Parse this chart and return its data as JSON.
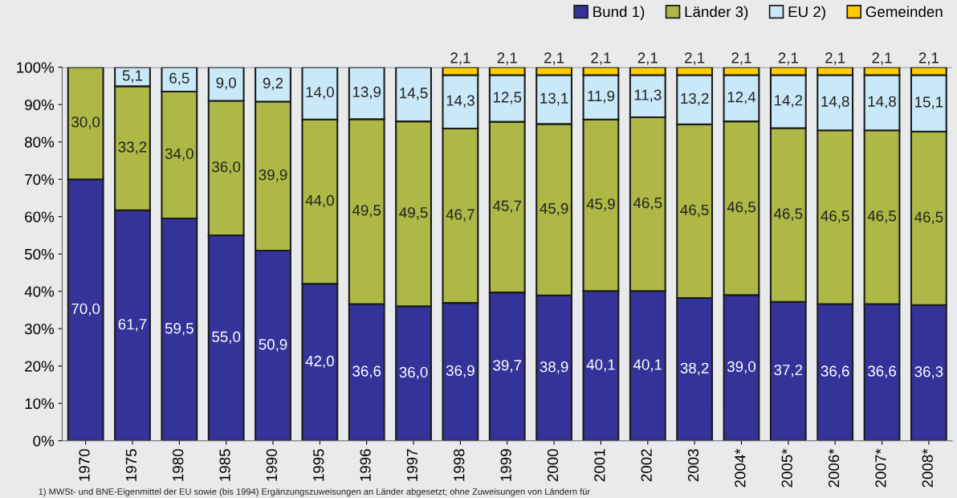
{
  "chart_data": {
    "type": "bar",
    "stacked": true,
    "categories": [
      "1970",
      "1975",
      "1980",
      "1985",
      "1990",
      "1995",
      "1996",
      "1997",
      "1998",
      "1999",
      "2000",
      "2001",
      "2002",
      "2003",
      "2004*",
      "2005*",
      "2006*",
      "2007*",
      "2008*"
    ],
    "series": [
      {
        "name": "Bund 1)",
        "color": "#333399",
        "values": [
          70.0,
          61.7,
          59.5,
          55.0,
          50.9,
          42.0,
          36.6,
          36.0,
          36.9,
          39.7,
          38.9,
          40.1,
          40.1,
          38.2,
          39.0,
          37.2,
          36.6,
          36.6,
          36.3
        ],
        "value_labels": [
          "70,0",
          "61,7",
          "59,5",
          "55,0",
          "50,9",
          "42,0",
          "36,6",
          "36,0",
          "36,9",
          "39,7",
          "38,9",
          "40,1",
          "40,1",
          "38,2",
          "39,0",
          "37,2",
          "36,6",
          "36,6",
          "36,3"
        ]
      },
      {
        "name": "Länder 3)",
        "color": "#adb847",
        "values": [
          30.0,
          33.2,
          34.0,
          36.0,
          39.9,
          44.0,
          49.5,
          49.5,
          46.7,
          45.7,
          45.9,
          45.9,
          46.5,
          46.5,
          46.5,
          46.5,
          46.5,
          46.5,
          46.5
        ],
        "value_labels": [
          "30,0",
          "33,2",
          "34,0",
          "36,0",
          "39,9",
          "44,0",
          "49,5",
          "49,5",
          "46,7",
          "45,7",
          "45,9",
          "45,9",
          "46,5",
          "46,5",
          "46,5",
          "46,5",
          "46,5",
          "46,5",
          "46,5"
        ]
      },
      {
        "name": "EU 2)",
        "color": "#c9e9f8",
        "values": [
          null,
          5.1,
          6.5,
          9.0,
          9.2,
          14.0,
          13.9,
          14.5,
          14.3,
          12.5,
          13.1,
          11.9,
          11.3,
          13.2,
          12.4,
          14.2,
          14.8,
          14.8,
          15.1
        ],
        "value_labels": [
          null,
          "5,1",
          "6,5",
          "9,0",
          "9,2",
          "14,0",
          "13,9",
          "14,5",
          "14,3",
          "12,5",
          "13,1",
          "11,9",
          "11,3",
          "13,2",
          "12,4",
          "14,2",
          "14,8",
          "14,8",
          "15,1"
        ]
      },
      {
        "name": "Gemeinden",
        "color": "#ffcc00",
        "values": [
          null,
          null,
          null,
          null,
          null,
          null,
          null,
          null,
          2.1,
          2.1,
          2.1,
          2.1,
          2.1,
          2.1,
          2.1,
          2.1,
          2.1,
          2.1,
          2.1
        ],
        "value_labels": [
          null,
          null,
          null,
          null,
          null,
          null,
          null,
          null,
          "2,1",
          "2,1",
          "2,1",
          "2,1",
          "2,1",
          "2,1",
          "2,1",
          "2,1",
          "2,1",
          "2,1",
          "2,1"
        ]
      }
    ],
    "ylim": [
      0,
      100
    ],
    "yticks": [
      {
        "value": 0,
        "label": "0%"
      },
      {
        "value": 10,
        "label": "10%"
      },
      {
        "value": 20,
        "label": "20%"
      },
      {
        "value": 30,
        "label": "30%"
      },
      {
        "value": 40,
        "label": "40%"
      },
      {
        "value": 50,
        "label": "50%"
      },
      {
        "value": 60,
        "label": "60%"
      },
      {
        "value": 70,
        "label": "70%"
      },
      {
        "value": 80,
        "label": "80%"
      },
      {
        "value": 90,
        "label": "90%"
      },
      {
        "value": 100,
        "label": "100%"
      }
    ],
    "grid": false,
    "legend": "top right",
    "annotations": [
      "1) MWSt- und BNE-Eigenmittel der EU sowie (bis 1994) Ergänzungszuweisungen an Länder abgesetzt; ohne Zuweisungen von Ländern für"
    ]
  }
}
